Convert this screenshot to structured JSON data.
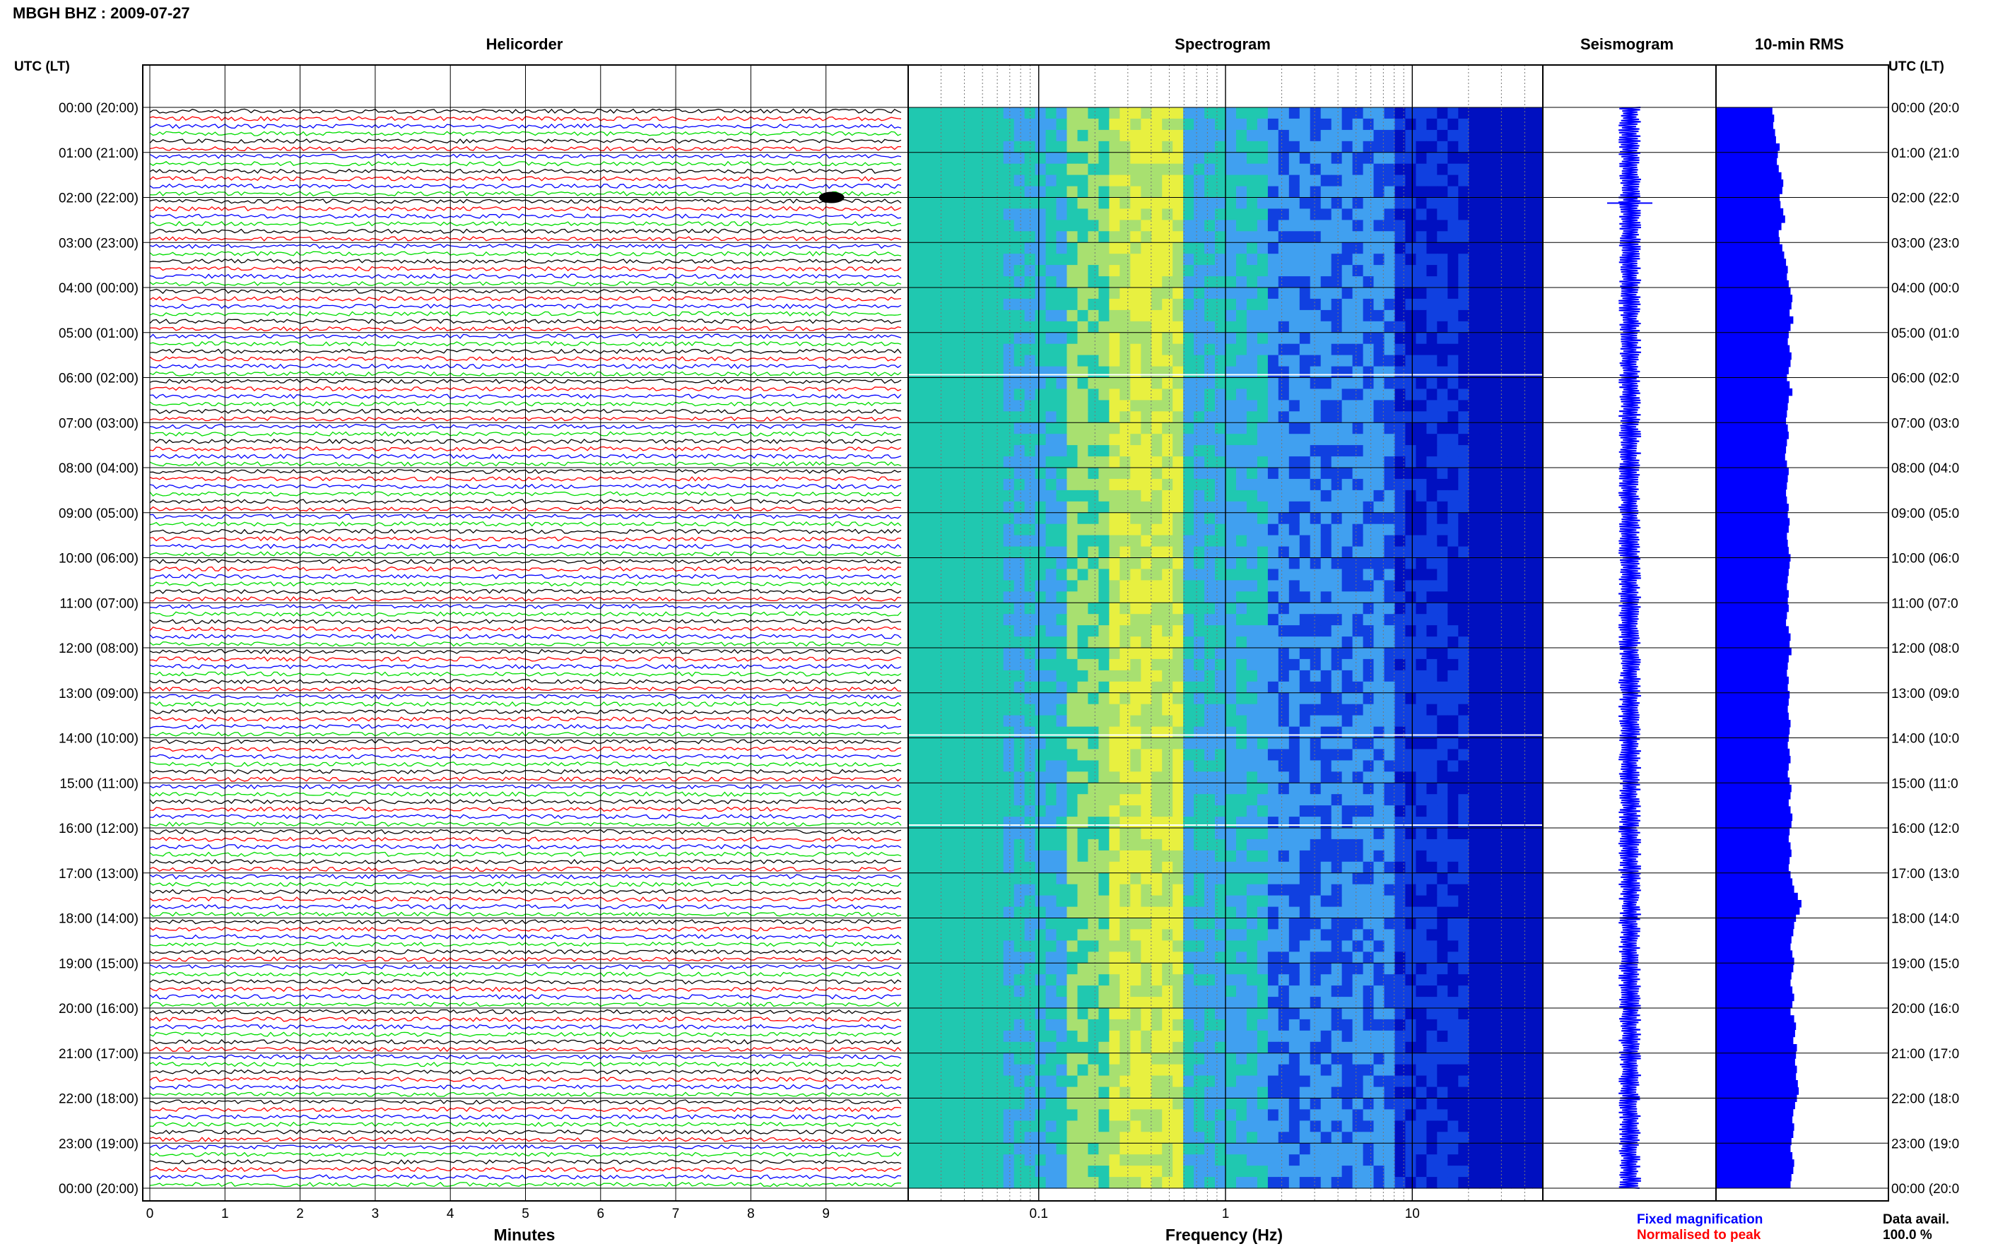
{
  "header": {
    "title": "MBGH BHZ : 2009-07-27"
  },
  "panels": {
    "helicorder": "Helicorder",
    "spectrogram": "Spectrogram",
    "seismogram": "Seismogram",
    "rms": "10-min RMS"
  },
  "axes": {
    "utc_label_left": "UTC (LT)",
    "utc_label_right": "UTC (LT)",
    "minutes_label": "Minutes",
    "frequency_label": "Frequency (Hz)",
    "minute_ticks": [
      "0",
      "1",
      "2",
      "3",
      "4",
      "5",
      "6",
      "7",
      "8",
      "9"
    ],
    "frequency_ticks": [
      "0.1",
      "1",
      "10"
    ],
    "time_rows": [
      "00:00 (20:00)",
      "01:00 (21:00)",
      "02:00 (22:00)",
      "03:00 (23:00)",
      "04:00 (00:00)",
      "05:00 (01:00)",
      "06:00 (02:00)",
      "07:00 (03:00)",
      "08:00 (04:00)",
      "09:00 (05:00)",
      "10:00 (06:00)",
      "11:00 (07:00)",
      "12:00 (08:00)",
      "13:00 (09:00)",
      "14:00 (10:00)",
      "15:00 (11:00)",
      "16:00 (12:00)",
      "17:00 (13:00)",
      "18:00 (14:00)",
      "19:00 (15:00)",
      "20:00 (16:00)",
      "21:00 (17:00)",
      "22:00 (18:00)",
      "23:00 (19:00)",
      "00:00 (20:00)"
    ],
    "time_rows_right": [
      "00:00 (20:0",
      "01:00 (21:0",
      "02:00 (22:0",
      "03:00 (23:0",
      "04:00 (00:0",
      "05:00 (01:0",
      "06:00 (02:0",
      "07:00 (03:0",
      "08:00 (04:0",
      "09:00 (05:0",
      "10:00 (06:0",
      "11:00 (07:0",
      "12:00 (08:0",
      "13:00 (09:0",
      "14:00 (10:0",
      "15:00 (11:0",
      "16:00 (12:0",
      "17:00 (13:0",
      "18:00 (14:0",
      "19:00 (15:0",
      "20:00 (16:0",
      "21:00 (17:0",
      "22:00 (18:0",
      "23:00 (19:0",
      "00:00 (20:0"
    ]
  },
  "legend": {
    "fixed": "Fixed magnification",
    "normalised": "Normalised to peak",
    "fixed_color": "#0000ff",
    "normalised_color": "#ff0000"
  },
  "data_avail": {
    "label": "Data avail.",
    "value": "100.0 %"
  },
  "colors": {
    "trace_cycle": [
      "#000000",
      "#ff0000",
      "#0000ff",
      "#00dd00"
    ],
    "rms_bar": "#0000ff",
    "seismogram": "#0000ff"
  },
  "chart_data": [
    {
      "type": "line",
      "title": "Helicorder",
      "xlabel": "Minutes",
      "xlim": [
        0,
        10
      ],
      "rows_per_hour": 6,
      "hours": 24,
      "events": [
        {
          "hour": 2,
          "minute": 9.0
        }
      ]
    },
    {
      "type": "heatmap",
      "title": "Spectrogram",
      "xlabel": "Frequency (Hz)",
      "x_scale": "log",
      "xlim": [
        0.02,
        50
      ],
      "colormap": [
        "#20c8b0",
        "#a8e070",
        "#e8f040",
        "#40a0f0",
        "#1040e0",
        "#0010c0"
      ]
    },
    {
      "type": "line",
      "title": "Seismogram",
      "hours": 24
    },
    {
      "type": "bar",
      "title": "10-min RMS",
      "values": [
        0.62,
        0.64,
        0.63,
        0.65,
        0.66,
        0.7,
        0.68,
        0.67,
        0.69,
        0.72,
        0.74,
        0.73,
        0.7,
        0.71,
        0.74,
        0.76,
        0.72,
        0.69,
        0.7,
        0.73,
        0.75,
        0.77,
        0.79,
        0.78,
        0.8,
        0.82,
        0.84,
        0.83,
        0.81,
        0.85,
        0.82,
        0.8,
        0.79,
        0.81,
        0.83,
        0.82,
        0.8,
        0.78,
        0.81,
        0.84,
        0.8,
        0.79,
        0.78,
        0.77,
        0.79,
        0.8,
        0.78,
        0.77,
        0.76,
        0.78,
        0.8,
        0.79,
        0.78,
        0.77,
        0.78,
        0.8,
        0.79,
        0.81,
        0.8,
        0.78,
        0.79,
        0.8,
        0.82,
        0.81,
        0.8,
        0.79,
        0.78,
        0.8,
        0.79,
        0.8,
        0.78,
        0.77,
        0.8,
        0.82,
        0.81,
        0.83,
        0.8,
        0.79,
        0.78,
        0.8,
        0.79,
        0.81,
        0.8,
        0.79,
        0.8,
        0.82,
        0.81,
        0.8,
        0.79,
        0.81,
        0.82,
        0.8,
        0.79,
        0.81,
        0.83,
        0.82,
        0.8,
        0.82,
        0.84,
        0.83,
        0.81,
        0.8,
        0.82,
        0.83,
        0.81,
        0.8,
        0.82,
        0.84,
        0.86,
        0.9,
        0.94,
        0.92,
        0.88,
        0.86,
        0.85,
        0.83,
        0.82,
        0.84,
        0.86,
        0.85,
        0.83,
        0.82,
        0.84,
        0.86,
        0.84,
        0.82,
        0.86,
        0.88,
        0.87,
        0.85,
        0.89,
        0.88,
        0.87,
        0.89,
        0.88,
        0.9,
        0.91,
        0.89,
        0.87,
        0.85,
        0.84,
        0.86,
        0.85,
        0.83,
        0.82,
        0.84,
        0.86,
        0.85,
        0.83,
        0.82
      ]
    }
  ]
}
